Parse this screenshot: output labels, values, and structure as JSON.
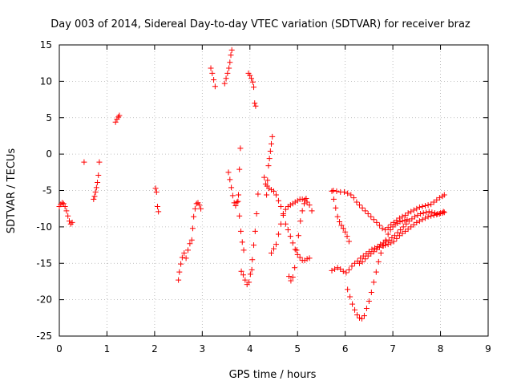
{
  "chart_data": {
    "type": "scatter",
    "title": "Day 003 of 2014, Sidereal Day-to-day VTEC variation (SDTVAR) for receiver braz",
    "xlabel": "GPS time / hours",
    "ylabel": "SDTVAR / TECUs",
    "xlim": [
      0,
      9
    ],
    "ylim": [
      -25,
      15
    ],
    "xticks": [
      0,
      1,
      2,
      3,
      4,
      5,
      6,
      7,
      8,
      9
    ],
    "yticks": [
      -25,
      -20,
      -15,
      -10,
      -5,
      0,
      5,
      10,
      15
    ],
    "grid": true,
    "marker": "+",
    "color": "#ff0000",
    "series": [
      {
        "name": "s01",
        "x": [
          0.0,
          0.03,
          0.06,
          0.09,
          0.12,
          0.15,
          0.18,
          0.21,
          0.24,
          0.27
        ],
        "y": [
          -7.2,
          -6.9,
          -6.7,
          -6.8,
          -7.2,
          -7.8,
          -8.5,
          -9.2,
          -9.6,
          -9.4
        ]
      },
      {
        "name": "s02",
        "x": [
          0.52
        ],
        "y": [
          -1.1
        ]
      },
      {
        "name": "s03",
        "x": [
          0.72,
          0.74,
          0.76,
          0.78,
          0.8,
          0.82,
          0.84
        ],
        "y": [
          -6.2,
          -5.8,
          -5.2,
          -4.6,
          -3.9,
          -2.9,
          -1.1
        ]
      },
      {
        "name": "s04",
        "x": [
          1.18,
          1.21,
          1.24,
          1.26
        ],
        "y": [
          4.4,
          4.8,
          5.1,
          5.3
        ]
      },
      {
        "name": "s05",
        "x": [
          2.02,
          2.04,
          2.06,
          2.08
        ],
        "y": [
          -4.7,
          -5.2,
          -7.2,
          -7.9
        ]
      },
      {
        "name": "s06",
        "x": [
          2.5,
          2.52,
          2.55,
          2.58,
          2.62,
          2.66,
          2.7,
          2.74,
          2.78,
          2.8,
          2.82,
          2.85,
          2.88,
          2.91,
          2.94,
          2.97
        ],
        "y": [
          -17.3,
          -16.2,
          -15.1,
          -14.2,
          -13.6,
          -14.3,
          -13.2,
          -12.3,
          -11.8,
          -10.2,
          -8.6,
          -7.5,
          -6.8,
          -6.7,
          -7.0,
          -7.5
        ]
      },
      {
        "name": "s07",
        "x": [
          3.18,
          3.21,
          3.24,
          3.27
        ],
        "y": [
          11.8,
          11.1,
          10.2,
          9.3
        ]
      },
      {
        "name": "s08",
        "x": [
          3.47,
          3.5,
          3.53,
          3.56,
          3.58,
          3.6,
          3.62
        ],
        "y": [
          9.7,
          10.4,
          11.1,
          11.8,
          12.6,
          13.6,
          14.3
        ]
      },
      {
        "name": "s09",
        "x": [
          3.55,
          3.58,
          3.61,
          3.64,
          3.67,
          3.7,
          3.73,
          3.76,
          3.78,
          3.8
        ],
        "y": [
          -2.5,
          -3.5,
          -4.6,
          -5.7,
          -6.7,
          -7.1,
          -6.6,
          -5.6,
          -2.1,
          0.8
        ]
      },
      {
        "name": "s10",
        "x": [
          3.75,
          3.78,
          3.81,
          3.84,
          3.87
        ],
        "y": [
          -6.5,
          -8.5,
          -10.6,
          -12.1,
          -13.2
        ]
      },
      {
        "name": "s11",
        "x": [
          3.82,
          3.86,
          3.9,
          3.94,
          3.98,
          4.01,
          4.04
        ],
        "y": [
          -16.1,
          -16.6,
          -17.3,
          -17.9,
          -17.6,
          -16.5,
          -15.9
        ]
      },
      {
        "name": "s12",
        "x": [
          3.97,
          4.0,
          4.03,
          4.06,
          4.08,
          4.1,
          4.12
        ],
        "y": [
          11.1,
          10.8,
          10.4,
          9.9,
          9.2,
          7.0,
          6.6
        ]
      },
      {
        "name": "s13",
        "x": [
          4.05,
          4.08,
          4.11,
          4.14,
          4.17
        ],
        "y": [
          -14.5,
          -12.5,
          -10.6,
          -8.2,
          -5.5
        ]
      },
      {
        "name": "s14",
        "x": [
          4.3,
          4.33,
          4.36,
          4.4,
          4.45,
          4.5,
          4.55,
          4.6,
          4.65,
          4.7,
          4.75,
          4.8,
          4.85,
          4.9,
          4.95,
          5.0,
          5.05,
          5.1,
          5.15,
          5.2,
          5.25
        ],
        "y": [
          -3.2,
          -4.1,
          -4.4,
          -4.7,
          -4.9,
          -5.1,
          -5.6,
          -6.4,
          -7.2,
          -8.4,
          -9.6,
          -10.4,
          -11.3,
          -12.2,
          -13.1,
          -13.8,
          -14.2,
          -14.6,
          -14.6,
          -14.4,
          -14.3
        ]
      },
      {
        "name": "s15",
        "x": [
          4.35,
          4.37,
          4.39,
          4.41,
          4.43,
          4.45,
          4.47
        ],
        "y": [
          -5.6,
          -3.6,
          -1.6,
          -0.6,
          0.4,
          1.4,
          2.4
        ]
      },
      {
        "name": "s16",
        "x": [
          4.45,
          4.5,
          4.55,
          4.6,
          4.65,
          4.7,
          4.75,
          4.8,
          4.85,
          4.9,
          4.95,
          5.0,
          5.05,
          5.1,
          5.15,
          5.2,
          5.25,
          5.3
        ],
        "y": [
          -13.6,
          -13.0,
          -12.4,
          -11.0,
          -9.6,
          -8.2,
          -7.6,
          -7.2,
          -7.0,
          -6.8,
          -6.6,
          -6.4,
          -6.2,
          -6.2,
          -6.3,
          -6.6,
          -7.0,
          -7.8
        ]
      },
      {
        "name": "s17",
        "x": [
          4.82,
          4.86,
          4.9,
          4.94,
          4.98,
          5.02,
          5.06,
          5.1,
          5.14,
          5.18
        ],
        "y": [
          -16.8,
          -17.4,
          -16.9,
          -15.6,
          -13.2,
          -11.2,
          -9.2,
          -7.8,
          -6.8,
          -6.1
        ]
      },
      {
        "name": "s18",
        "x": [
          5.72,
          5.78,
          5.84,
          5.9,
          5.96,
          6.02,
          6.08,
          6.14,
          6.2,
          6.26,
          6.32,
          6.38,
          6.44,
          6.5,
          6.56,
          6.62,
          6.68,
          6.74,
          6.8,
          6.86,
          6.92,
          6.98,
          7.04,
          7.1,
          7.16,
          7.22,
          7.28,
          7.34,
          7.4,
          7.46,
          7.52,
          7.58,
          7.64,
          7.7,
          7.76,
          7.82,
          7.88,
          7.94,
          8.0,
          8.06
        ],
        "y": [
          -16.0,
          -15.8,
          -15.6,
          -15.8,
          -16.1,
          -16.3,
          -15.9,
          -15.4,
          -15.0,
          -14.7,
          -14.3,
          -14.0,
          -13.7,
          -13.4,
          -13.1,
          -12.9,
          -12.7,
          -12.4,
          -12.2,
          -12.0,
          -11.8,
          -11.5,
          -11.2,
          -10.8,
          -10.4,
          -10.0,
          -9.6,
          -9.2,
          -8.9,
          -8.6,
          -8.4,
          -8.2,
          -8.1,
          -8.0,
          -7.9,
          -8.0,
          -8.1,
          -8.2,
          -8.1,
          -7.9
        ]
      },
      {
        "name": "s19",
        "x": [
          5.72,
          5.76,
          5.8,
          5.84,
          5.88,
          5.92,
          5.96,
          6.0,
          6.04,
          6.08
        ],
        "y": [
          -5.1,
          -6.2,
          -7.4,
          -8.6,
          -9.3,
          -9.8,
          -10.2,
          -10.7,
          -11.3,
          -12.0
        ]
      },
      {
        "name": "s20",
        "x": [
          5.75,
          5.82,
          5.9,
          5.98,
          6.05,
          6.12,
          6.18,
          6.24,
          6.3,
          6.36,
          6.42,
          6.48,
          6.54,
          6.6,
          6.66,
          6.72,
          6.78,
          6.84,
          6.9,
          6.96,
          7.02,
          7.08,
          7.14,
          7.2,
          7.26,
          7.32,
          7.38,
          7.44,
          7.5,
          7.56,
          7.62,
          7.68,
          7.74,
          7.8,
          7.86,
          7.92,
          7.98,
          8.04,
          8.08
        ],
        "y": [
          -5.0,
          -5.1,
          -5.2,
          -5.2,
          -5.4,
          -5.6,
          -6.0,
          -6.6,
          -7.0,
          -7.4,
          -7.8,
          -8.2,
          -8.6,
          -9.0,
          -9.4,
          -9.8,
          -10.2,
          -10.4,
          -10.1,
          -9.7,
          -9.4,
          -9.1,
          -8.8,
          -8.6,
          -8.4,
          -8.1,
          -7.9,
          -7.7,
          -7.5,
          -7.3,
          -7.2,
          -7.1,
          -7.0,
          -6.9,
          -6.6,
          -6.3,
          -6.0,
          -5.8,
          -5.6
        ]
      },
      {
        "name": "s21",
        "x": [
          6.05,
          6.1,
          6.15,
          6.2,
          6.25,
          6.3,
          6.35,
          6.4,
          6.45,
          6.5,
          6.55,
          6.6,
          6.65,
          6.7,
          6.75,
          6.8,
          6.85,
          6.9,
          6.95,
          7.0,
          7.05,
          7.1,
          7.15,
          7.2,
          7.25,
          7.3
        ],
        "y": [
          -18.6,
          -19.6,
          -20.6,
          -21.4,
          -22.1,
          -22.5,
          -22.6,
          -22.2,
          -21.2,
          -20.2,
          -19.0,
          -17.6,
          -16.2,
          -14.8,
          -13.6,
          -12.6,
          -11.8,
          -11.0,
          -10.4,
          -10.0,
          -9.7,
          -9.5,
          -9.3,
          -9.2,
          -9.1,
          -9.0
        ]
      },
      {
        "name": "s22",
        "x": [
          6.3,
          6.36,
          6.42,
          6.48,
          6.54,
          6.6,
          6.66,
          6.72,
          6.78,
          6.84,
          6.9,
          6.96,
          7.02,
          7.08,
          7.14,
          7.2,
          7.26,
          7.32,
          7.38,
          7.44,
          7.5,
          7.56,
          7.62,
          7.68,
          7.74,
          7.8,
          7.86,
          7.92,
          7.98,
          8.04,
          8.08
        ],
        "y": [
          -15.0,
          -14.8,
          -14.4,
          -14.0,
          -13.7,
          -13.4,
          -13.1,
          -12.8,
          -12.6,
          -12.5,
          -12.4,
          -12.2,
          -12.0,
          -11.6,
          -11.2,
          -10.9,
          -10.6,
          -10.3,
          -10.0,
          -9.7,
          -9.4,
          -9.2,
          -9.0,
          -8.8,
          -8.6,
          -8.5,
          -8.4,
          -8.3,
          -8.2,
          -8.1,
          -8.0
        ]
      }
    ]
  }
}
